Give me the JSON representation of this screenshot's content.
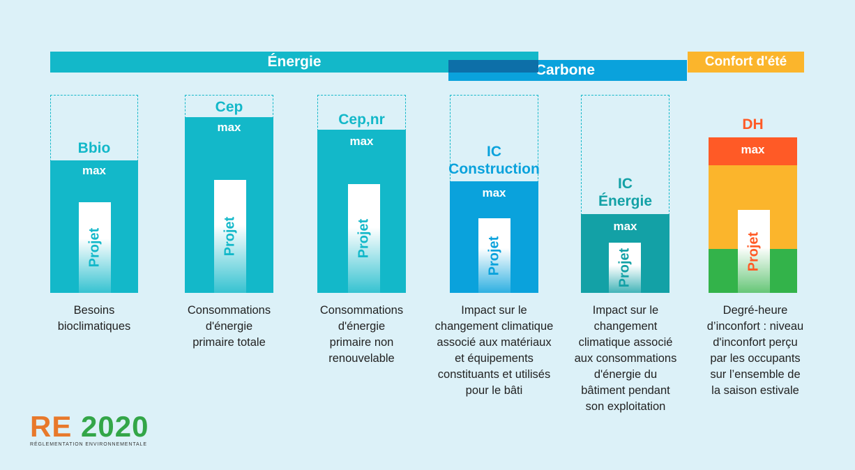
{
  "bands": {
    "energie": "Énergie",
    "carbone": "Carbone",
    "confort": "Confort d'été"
  },
  "indicators": [
    {
      "title": "Bbio",
      "max_label": "max",
      "project_label": "Projet",
      "description": [
        "Besoins",
        "bioclimatiques"
      ]
    },
    {
      "title": "Cep",
      "max_label": "max",
      "project_label": "Projet",
      "description": [
        "Consommations",
        "d'énergie",
        "primaire totale"
      ]
    },
    {
      "title": "Cep,nr",
      "max_label": "max",
      "project_label": "Projet",
      "description": [
        "Consommations",
        "d'énergie",
        "primaire non",
        "renouvelable"
      ]
    },
    {
      "title": [
        "IC",
        "Construction"
      ],
      "max_label": "max",
      "project_label": "Projet",
      "description": [
        "Impact sur le",
        "changement climatique",
        "associé aux matériaux",
        "et équipements",
        "constituants et utilisés",
        "pour le bâti"
      ]
    },
    {
      "title": [
        "IC",
        "Énergie"
      ],
      "max_label": "max",
      "project_label": "Projet",
      "description": [
        "Impact sur le",
        "changement",
        "climatique associé",
        "aux consommations",
        "d'énergie du",
        "bâtiment pendant",
        "son exploitation"
      ]
    },
    {
      "title": "DH",
      "max_label": "max",
      "project_label": "Projet",
      "description": [
        "Degré-heure",
        "d’inconfort : niveau",
        "d'inconfort perçu",
        "par les occupants",
        "sur l’ensemble de",
        "la saison estivale"
      ]
    }
  ],
  "logo": {
    "re": "RE",
    "year": "2020",
    "subtitle": "RÉGLEMENTATION ENVIRONNEMENTALE"
  },
  "colors": {
    "energie": "#13b8c9",
    "carbone_construction": "#0aa2dc",
    "carbone_energie": "#13a1a6",
    "dh_red": "#ff5a26",
    "dh_yellow": "#fbb52c",
    "dh_green": "#33b34a"
  }
}
